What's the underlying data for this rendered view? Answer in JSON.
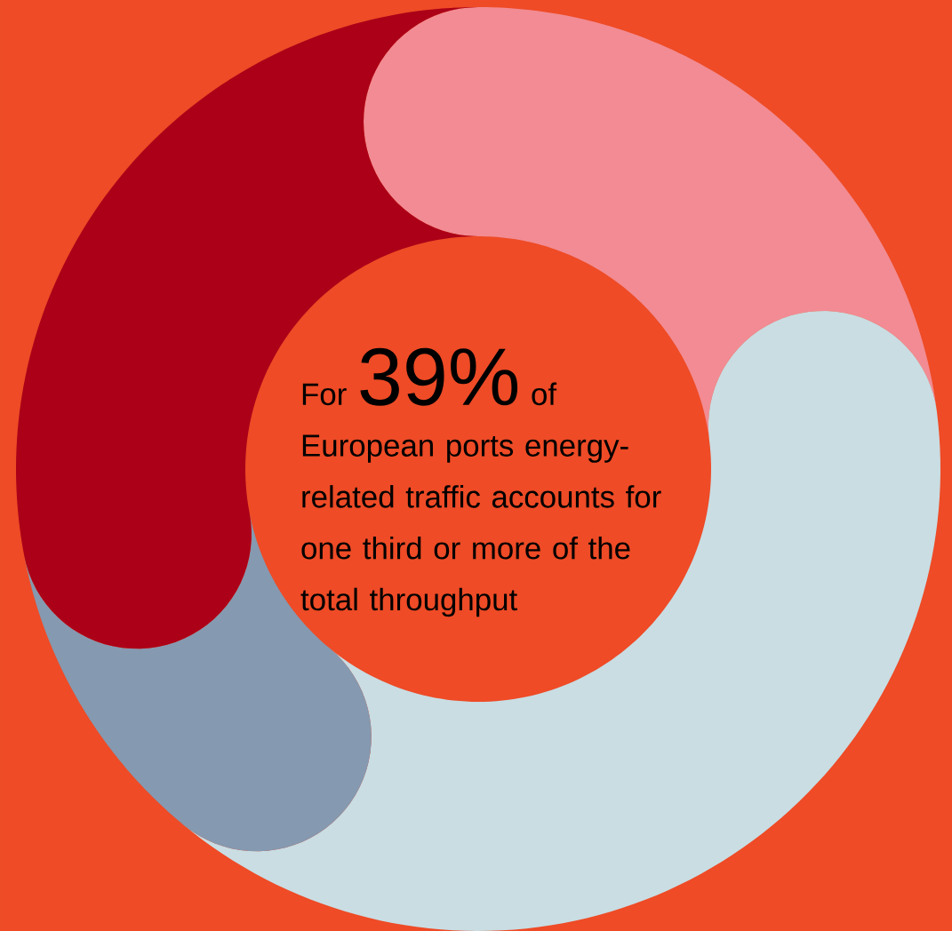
{
  "chart_data": {
    "type": "donut",
    "categories": [
      null,
      null,
      null,
      null
    ],
    "values": [
      23,
      38,
      11,
      28
    ],
    "colors": [
      "#f28b93",
      "#c9dde3",
      "#8599b0",
      "#ab0018"
    ],
    "annotations": [
      "For",
      "39%",
      "of",
      "European ports energy-related traffic accounts for one third or more of the total throughput"
    ]
  }
}
